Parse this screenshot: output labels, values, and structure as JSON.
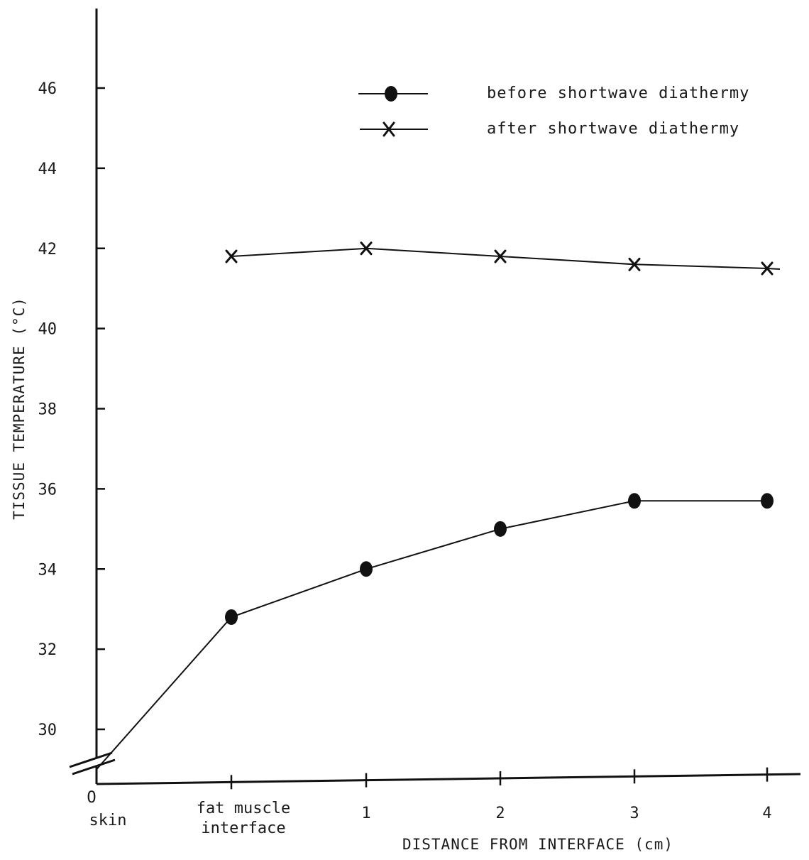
{
  "chart_data": {
    "type": "line",
    "title": "",
    "xlabel": "DISTANCE FROM INTERFACE  (cm)",
    "ylabel": "TISSUE TEMPERATURE (°C)",
    "x_origin_label": "O",
    "categories": [
      "skin",
      "fat muscle interface",
      "1",
      "2",
      "3",
      "4"
    ],
    "x_tick_labels": [
      {
        "lines": [
          "skin"
        ]
      },
      {
        "lines": [
          "fat muscle",
          "interface"
        ]
      },
      {
        "lines": [
          "1"
        ]
      },
      {
        "lines": [
          "2"
        ]
      },
      {
        "lines": [
          "3"
        ]
      },
      {
        "lines": [
          "4"
        ]
      }
    ],
    "y_ticks": [
      30,
      32,
      34,
      36,
      38,
      40,
      42,
      44,
      46
    ],
    "ylim": [
      28,
      48
    ],
    "y_axis_break": true,
    "legend_position": "top-right",
    "series": [
      {
        "name": "before shortwave diathermy",
        "marker": "filled-circle",
        "x": [
          "skin",
          "fat muscle interface",
          "1",
          "2",
          "3",
          "4"
        ],
        "values": [
          29.0,
          32.8,
          34.0,
          35.0,
          35.7,
          35.7
        ]
      },
      {
        "name": "after shortwave diathermy",
        "marker": "x",
        "x": [
          "fat muscle interface",
          "1",
          "2",
          "3",
          "4"
        ],
        "values": [
          41.8,
          42.0,
          41.8,
          41.6,
          41.5
        ]
      }
    ]
  }
}
